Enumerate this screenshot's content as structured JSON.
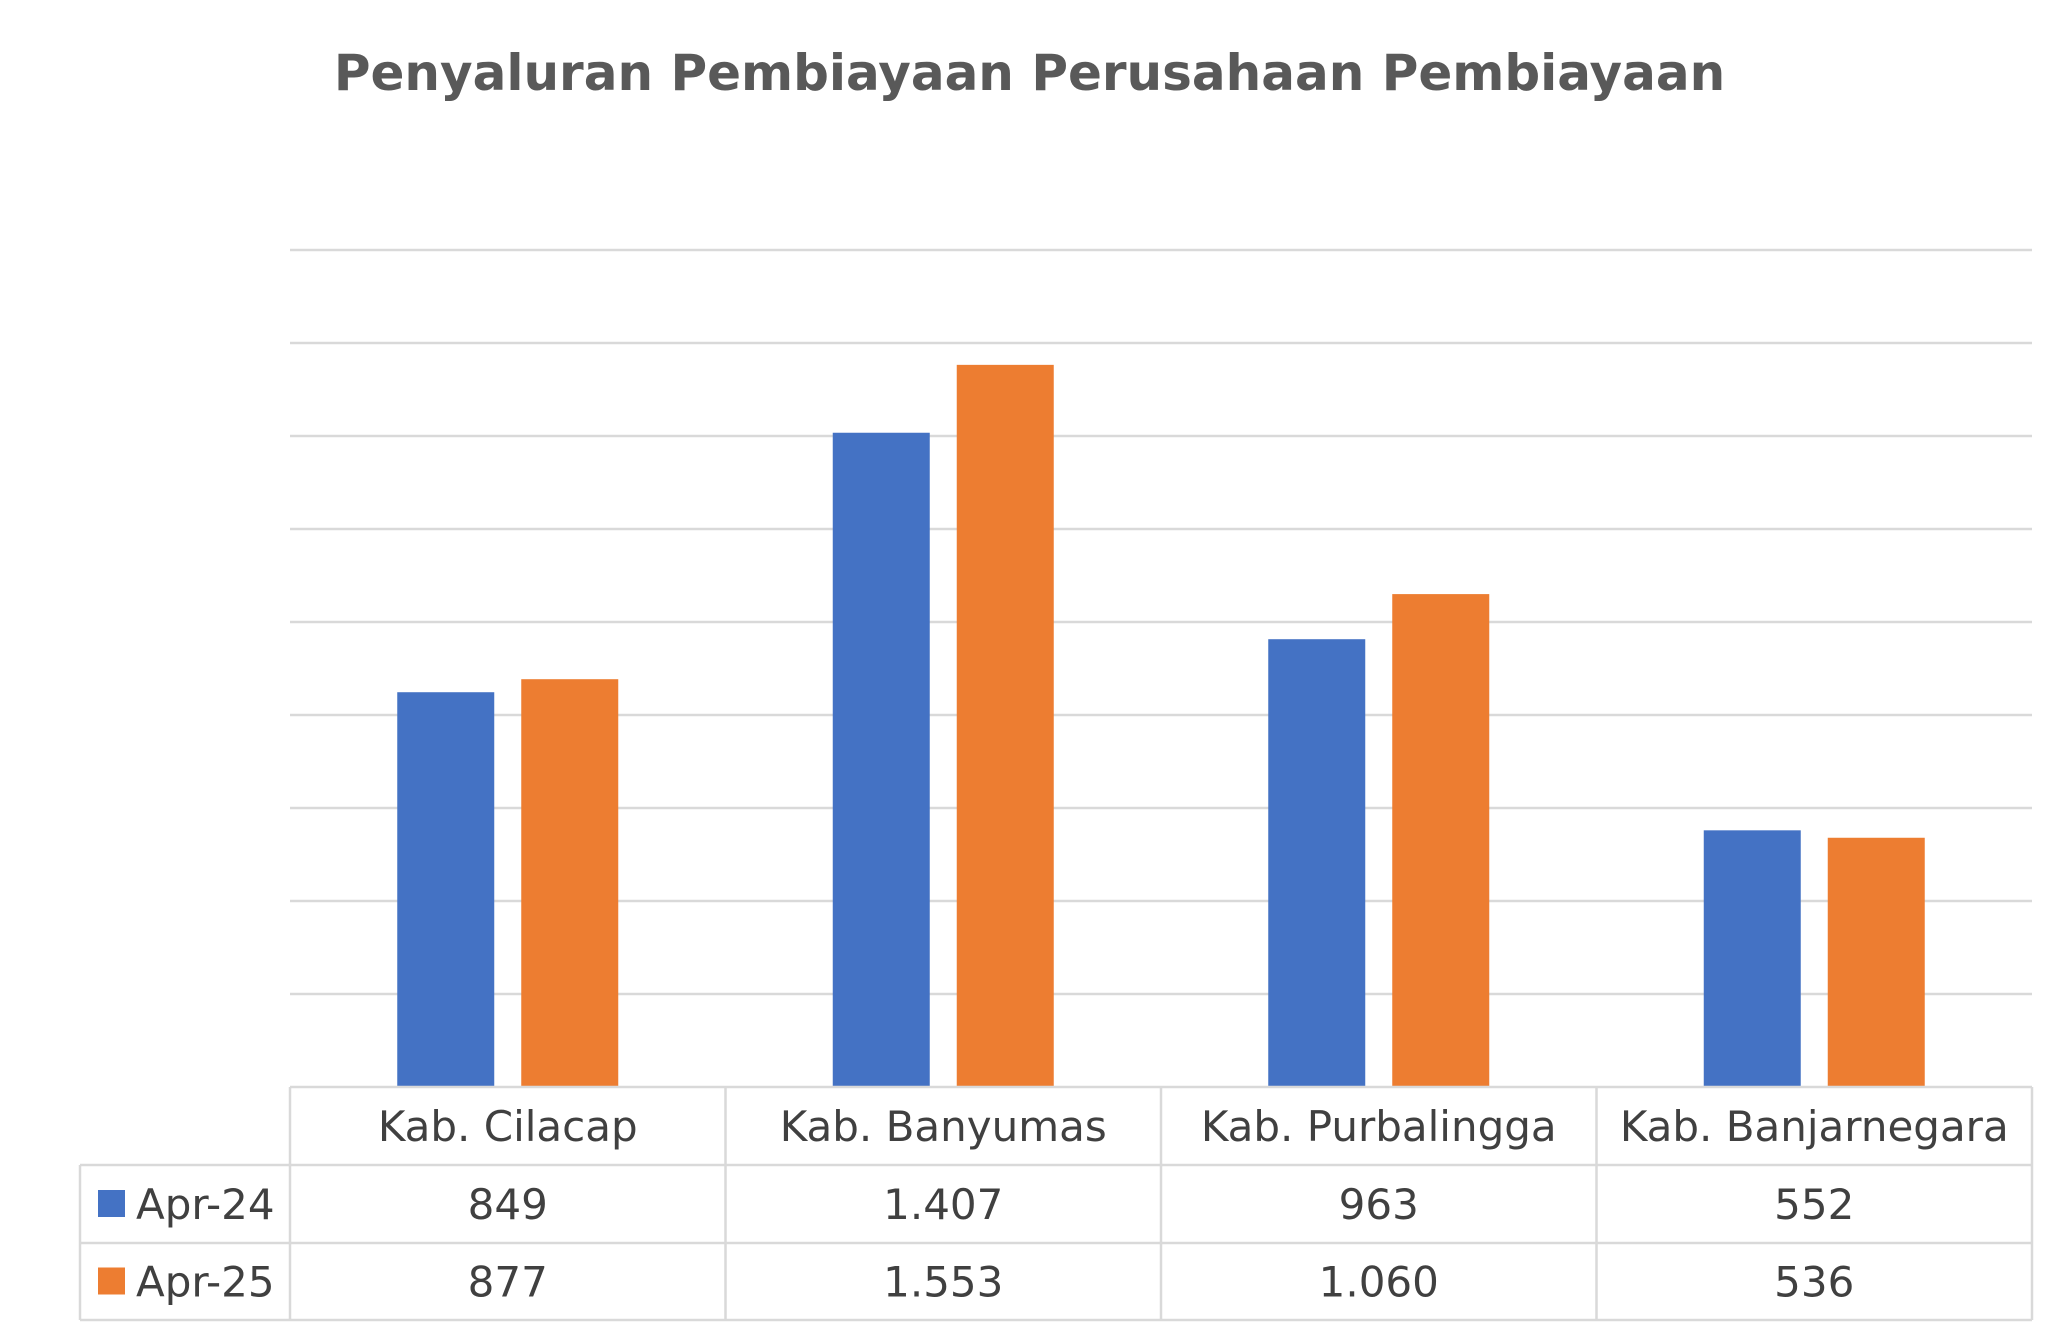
{
  "chart_data": {
    "type": "bar",
    "title": "Penyaluran Pembiayaan Perusahaan Pembiayaan",
    "categories": [
      "Kab. Cilacap",
      "Kab. Banyumas",
      "Kab. Purbalingga",
      "Kab. Banjarnegara"
    ],
    "series": [
      {
        "name": "Apr-24",
        "values": [
          849,
          1407,
          963,
          552
        ],
        "labels": [
          "849",
          "1.407",
          "963",
          "552"
        ],
        "color": "#4472C4"
      },
      {
        "name": "Apr-25",
        "values": [
          877,
          1553,
          1060,
          536
        ],
        "labels": [
          "877",
          "1.553",
          "1.060",
          "536"
        ],
        "color": "#ED7D31"
      }
    ],
    "ylim": [
      0,
      1800
    ],
    "gridlines": true,
    "data_table": true,
    "legend": "in data table"
  },
  "colors": {
    "grid": "#D9D9D9",
    "table_border": "#D9D9D9",
    "title": "#595959",
    "text": "#404040"
  }
}
